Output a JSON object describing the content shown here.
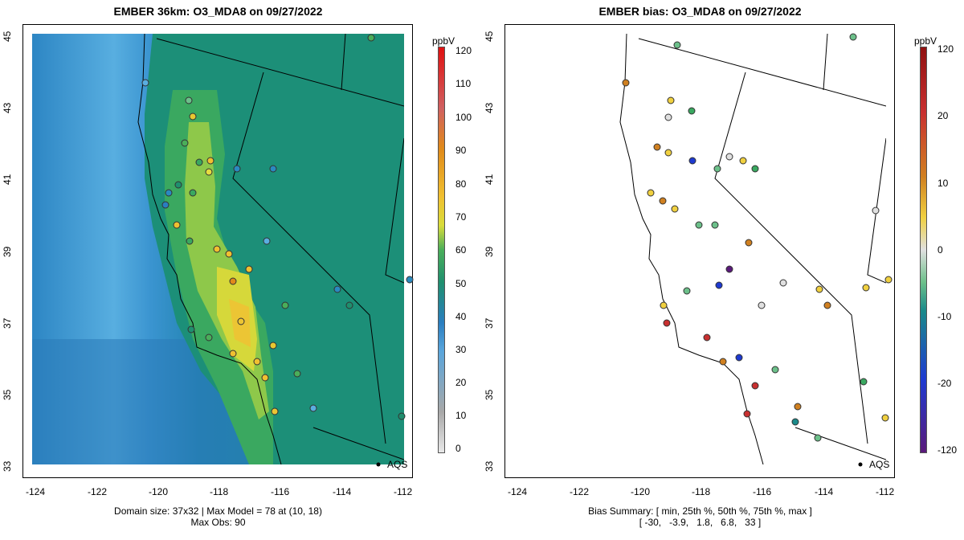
{
  "left_panel": {
    "title": "EMBER 36km: O3_MDA8 on 09/27/2022",
    "footer_line1": "Domain size: 37x32 | Max Model = 78 at (10, 18)",
    "footer_line2": "Max Obs: 90",
    "colorbar_unit": "ppbV",
    "colorbar_ticks": [
      "120",
      "110",
      "100",
      "90",
      "80",
      "70",
      "60",
      "50",
      "40",
      "30",
      "20",
      "10",
      "0"
    ],
    "marker_label": "AQS"
  },
  "right_panel": {
    "title": "EMBER bias: O3_MDA8 on 09/27/2022",
    "footer_line1": "Bias Summary: [ min, 25th %, 50th %, 75th %, max ]",
    "footer_line2": "[ -30,   -3.9,   1.8,   6.8,   33 ]",
    "colorbar_unit": "ppbV",
    "colorbar_ticks": [
      "120",
      "20",
      "10",
      "0",
      "-10",
      "-20",
      "-120"
    ],
    "marker_label": "AQS"
  },
  "axes": {
    "x_ticks": [
      "-124",
      "-122",
      "-120",
      "-118",
      "-116",
      "-114",
      "-112"
    ],
    "y_ticks": [
      "45",
      "43",
      "41",
      "39",
      "37",
      "35",
      "33"
    ]
  },
  "colors": {
    "conc_scale": [
      "#e8e8e8",
      "#a8a8a8",
      "#5aa6dc",
      "#2a7ec0",
      "#1f8f6e",
      "#4aae5a",
      "#d8dc3a",
      "#f0c030",
      "#e08a1a",
      "#d06060",
      "#e01010"
    ],
    "bias_scale": [
      "#5a1a7a",
      "#1e3ad0",
      "#1a8a8a",
      "#6cc08a",
      "#e0e0e0",
      "#f0d040",
      "#d08020",
      "#c83030",
      "#901010"
    ]
  }
}
